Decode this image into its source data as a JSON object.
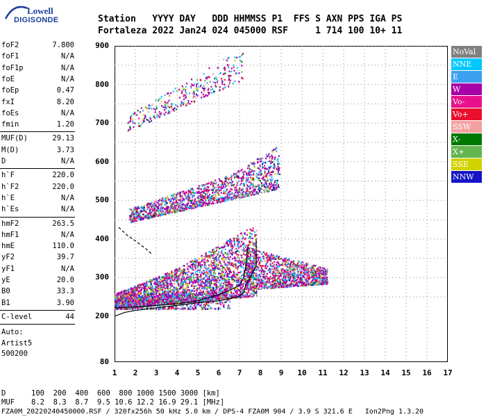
{
  "logo": {
    "line1": "Lowell",
    "line2": "DIGISONDE"
  },
  "header": {
    "row1": "Station   YYYY DAY   DDD HHMMSS P1  FFS S AXN PPS IGA PS",
    "row2": "Fortaleza 2022 Jan24 024 045000 RSF     1 714 100 10+ 11"
  },
  "params_group1": [
    {
      "label": "foF2",
      "value": "7.800"
    },
    {
      "label": "foF1",
      "value": "N/A"
    },
    {
      "label": "foF1p",
      "value": "N/A"
    },
    {
      "label": "foE",
      "value": "N/A"
    },
    {
      "label": "foEp",
      "value": "0.47"
    },
    {
      "label": "fxI",
      "value": "8.20"
    },
    {
      "label": "foEs",
      "value": "N/A"
    },
    {
      "label": "fmin",
      "value": "1.20"
    }
  ],
  "params_group2": [
    {
      "label": "MUF(D)",
      "value": "29.13"
    },
    {
      "label": "M(D)",
      "value": "3.73"
    },
    {
      "label": "D",
      "value": "N/A"
    }
  ],
  "params_group3": [
    {
      "label": "h`F",
      "value": "220.0"
    },
    {
      "label": "h`F2",
      "value": "220.0"
    },
    {
      "label": "h`E",
      "value": "N/A"
    },
    {
      "label": "h`Es",
      "value": "N/A"
    }
  ],
  "params_group4": [
    {
      "label": "hmF2",
      "value": "263.5"
    },
    {
      "label": "hmF1",
      "value": "N/A"
    },
    {
      "label": "hmE",
      "value": "110.0"
    },
    {
      "label": "yF2",
      "value": "39.7"
    },
    {
      "label": "yF1",
      "value": "N/A"
    },
    {
      "label": "yE",
      "value": "20.0"
    },
    {
      "label": "B0",
      "value": "33.3"
    },
    {
      "label": "B1",
      "value": "3.90"
    }
  ],
  "clevel": {
    "label": "C-level",
    "value": "44"
  },
  "auto": [
    "Auto:",
    "Artist5",
    "500200"
  ],
  "legend": [
    {
      "label": "NoVal",
      "color": "#808080"
    },
    {
      "label": "NNE",
      "color": "#00c8ff"
    },
    {
      "label": "E",
      "color": "#3ca0f0"
    },
    {
      "label": "W",
      "color": "#a800a8"
    },
    {
      "label": "Vo-",
      "color": "#e8108c"
    },
    {
      "label": "Vo+",
      "color": "#e8102c"
    },
    {
      "label": "SSW",
      "color": "#f4a0a0"
    },
    {
      "label": "X-",
      "color": "#007800"
    },
    {
      "label": "X+",
      "color": "#64b450"
    },
    {
      "label": "SSE",
      "color": "#d2d200"
    },
    {
      "label": "NNW",
      "color": "#1414c8"
    }
  ],
  "chart_data": {
    "type": "scatter",
    "x_ticks": [
      "1",
      "2",
      "3",
      "4",
      "5",
      "6",
      "7",
      "8",
      "9",
      "10",
      "11",
      "12",
      "13",
      "14",
      "15",
      "16",
      "17"
    ],
    "y_ticks": [
      "80",
      "200",
      "300",
      "400",
      "500",
      "600",
      "700",
      "800",
      "900"
    ],
    "xlim": [
      1,
      17
    ],
    "ylim_note": "nonlinear height axis, 80 at bottom then 200-900",
    "traces": [
      {
        "name": "profile",
        "x": [
          1.0,
          1.5,
          2.0,
          3.0,
          4.0,
          5.0,
          6.0,
          6.5,
          7.0,
          7.2,
          7.3,
          7.5,
          7.8,
          7.8
        ],
        "y": [
          200,
          210,
          215,
          222,
          228,
          235,
          240,
          245,
          252,
          262,
          280,
          300,
          330,
          400
        ]
      },
      {
        "name": "trace",
        "x": [
          1.0,
          2.0,
          3.0,
          4.0,
          5.0,
          5.5,
          6.0,
          6.5,
          7.0,
          7.2,
          7.3,
          7.4
        ],
        "y": [
          222,
          224,
          228,
          232,
          240,
          248,
          256,
          266,
          280,
          300,
          330,
          380
        ]
      },
      {
        "name": "dashed",
        "x": [
          1.2,
          1.6,
          2.0,
          2.5,
          2.8
        ],
        "y": [
          430,
          410,
          395,
          375,
          360
        ]
      }
    ],
    "clouds": [
      {
        "name": "F",
        "x_range": [
          1.0,
          11.5
        ],
        "y_range": [
          218,
          420
        ]
      },
      {
        "name": "2F",
        "x_range": [
          1.7,
          9.0
        ],
        "y_range": [
          440,
          640
        ]
      },
      {
        "name": "3F",
        "x_range": [
          1.6,
          7.3
        ],
        "y_range": [
          680,
          890
        ]
      }
    ]
  },
  "footer": {
    "dlabel": "D",
    "dvalues": "100  200  400  600  800 1000 1500 3000 [km]",
    "muflabel": "MUF",
    "mufvalues": "8.2  8.3  8.7  9.5 10.6 12.2 16.9 29.1 [MHz]",
    "file": "FZA0M_20220240450000.RSF / 320fx256h 50 kHz 5.0 km / DPS-4 FZA0M 904 / 3.9 S 321.6 E   Ion2Png 1.3.20"
  }
}
